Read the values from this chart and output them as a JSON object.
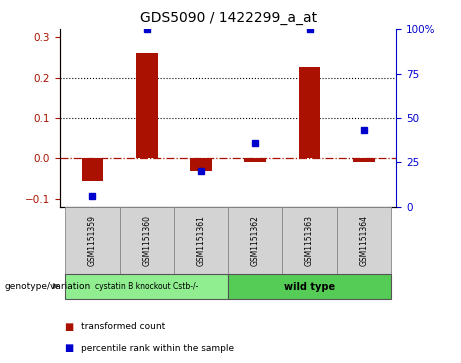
{
  "title": "GDS5090 / 1422299_a_at",
  "samples": [
    "GSM1151359",
    "GSM1151360",
    "GSM1151361",
    "GSM1151362",
    "GSM1151363",
    "GSM1151364"
  ],
  "transformed_count": [
    -0.055,
    0.26,
    -0.03,
    -0.01,
    0.225,
    -0.01
  ],
  "percentile_rank_scaled": [
    6.25,
    100.0,
    20.0,
    36.0,
    100.0,
    43.0
  ],
  "red_color": "#AA1100",
  "blue_color": "#0000CC",
  "ylim_left": [
    -0.12,
    0.32
  ],
  "ylim_right": [
    0,
    100
  ],
  "yticks_left": [
    -0.1,
    0.0,
    0.1,
    0.2,
    0.3
  ],
  "yticks_right": [
    0,
    25,
    50,
    75,
    100
  ],
  "group1_label": "cystatin B knockout Cstb-/-",
  "group2_label": "wild type",
  "group1_color": "#90EE90",
  "group2_color": "#55CC55",
  "genotype_label": "genotype/variation",
  "legend_red": "transformed count",
  "legend_blue": "percentile rank within the sample",
  "bar_width": 0.4,
  "title_fontsize": 10
}
